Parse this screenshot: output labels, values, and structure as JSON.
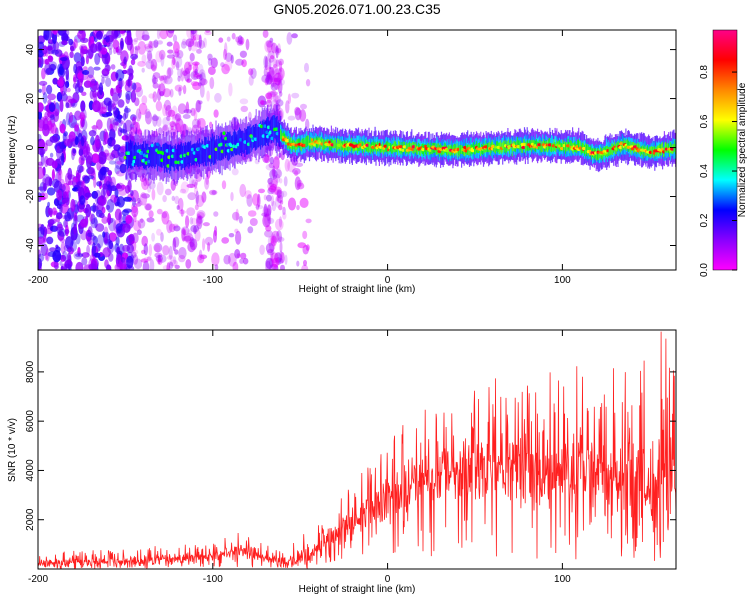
{
  "title": "GN05.2026.071.00.23.C35",
  "chart_data": [
    {
      "type": "heatmap",
      "xlabel": "Height of straight line (km)",
      "ylabel": "Frequency (Hz)",
      "xlim": [
        -200,
        165
      ],
      "ylim": [
        -50,
        48
      ],
      "xticks": [
        "-200",
        "-100",
        "0",
        "100"
      ],
      "yticks": [
        "-40",
        "-20",
        "0",
        "20",
        "40"
      ],
      "colorbar": {
        "label": "Normalized spectral amplitude",
        "range": [
          0,
          0.97
        ],
        "ticks": [
          "0.0",
          "0.2",
          "0.4",
          "0.6",
          "0.8"
        ],
        "colors": [
          "#ff00ff",
          "#8800ff",
          "#0000ff",
          "#00ffff",
          "#00ff00",
          "#ffff00",
          "#ff8800",
          "#ff0000",
          "#ff0088"
        ]
      },
      "ridge": {
        "description_points_km_hz": [
          [
            -145,
            -3
          ],
          [
            -120,
            -4
          ],
          [
            -100,
            -1
          ],
          [
            -80,
            3
          ],
          [
            -65,
            8
          ],
          [
            -55,
            1
          ],
          [
            -40,
            2
          ],
          [
            -30,
            1
          ],
          [
            0,
            0
          ],
          [
            40,
            -1
          ],
          [
            80,
            1
          ],
          [
            110,
            0
          ],
          [
            120,
            -3
          ],
          [
            135,
            1
          ],
          [
            150,
            -2
          ],
          [
            165,
            0
          ]
        ],
        "coherent_start_km": -62
      },
      "noise_extent_km": [
        -200,
        -40
      ]
    },
    {
      "type": "line",
      "xlabel": "Height of straight line (km)",
      "ylabel": "SNR (10 * v/v)",
      "xlim": [
        -200,
        165
      ],
      "ylim": [
        0,
        9700
      ],
      "xticks": [
        "-200",
        "-100",
        "0",
        "100"
      ],
      "yticks": [
        "2000",
        "4000",
        "6000",
        "8000"
      ],
      "color": "#ff2020",
      "envelope": {
        "x": [
          -200,
          -150,
          -140,
          -100,
          -85,
          -70,
          -60,
          -50,
          -40,
          -30,
          -20,
          -10,
          0,
          10,
          20,
          40,
          60,
          80,
          100,
          120,
          140,
          160,
          165
        ],
        "mean": [
          250,
          300,
          350,
          500,
          800,
          450,
          250,
          400,
          900,
          1400,
          1900,
          2300,
          2800,
          3200,
          3700,
          4000,
          4100,
          4100,
          4000,
          3900,
          3700,
          3300,
          3000
        ],
        "peak": [
          700,
          800,
          900,
          1100,
          1500,
          1000,
          700,
          1300,
          2200,
          2800,
          3500,
          4300,
          5300,
          6200,
          6500,
          7200,
          7800,
          7800,
          8300,
          8300,
          9500,
          9700,
          8500
        ]
      }
    }
  ]
}
